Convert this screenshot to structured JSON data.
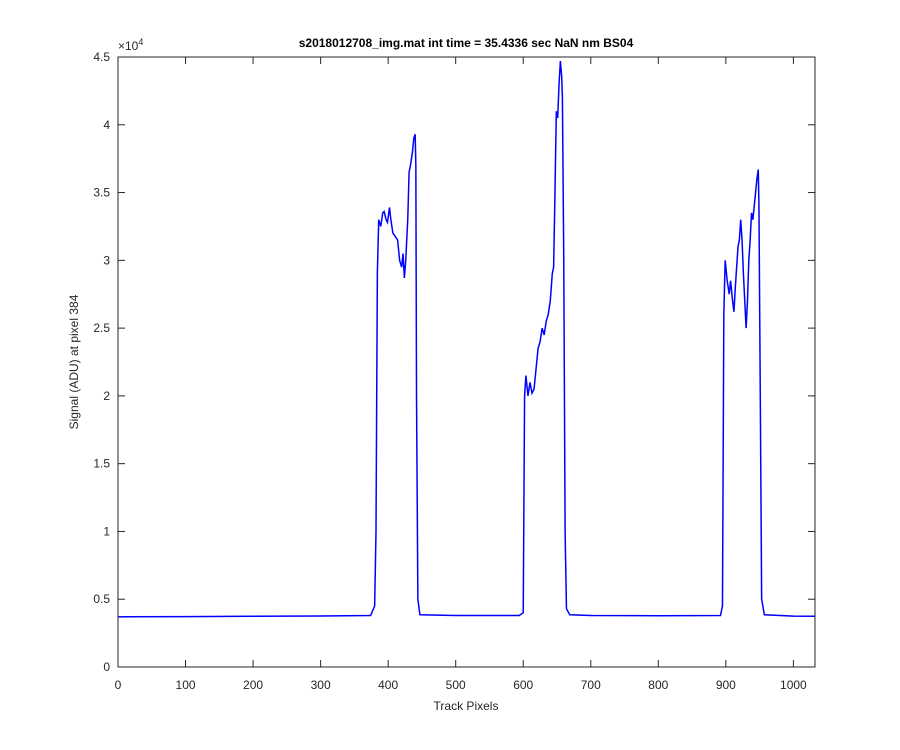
{
  "chart_data": {
    "type": "line",
    "title": "s2018012708_img.mat int time = 35.4336 sec  NaN nm BS04",
    "x_label": "Track Pixels",
    "y_label": "Signal (ADU) at pixel 384",
    "y_multiplier": {
      "base": "×10",
      "exponent": "4"
    },
    "xlim": [
      0,
      1032
    ],
    "xticks": [
      0,
      100,
      200,
      300,
      400,
      500,
      600,
      700,
      800,
      900,
      1000
    ],
    "ylim": [
      0,
      45000
    ],
    "yticks": [
      0,
      {
        "value": 5000,
        "label": "0.5"
      },
      {
        "value": 10000,
        "label": "1"
      },
      {
        "value": 15000,
        "label": "1.5"
      },
      {
        "value": 20000,
        "label": "2"
      },
      {
        "value": 25000,
        "label": "2.5"
      },
      {
        "value": 30000,
        "label": "3"
      },
      {
        "value": 35000,
        "label": "3.5"
      },
      {
        "value": 40000,
        "label": "4"
      },
      {
        "value": 45000,
        "label": "4.5"
      }
    ],
    "grid": false,
    "series": [
      {
        "color": "#0000ff",
        "x": [
          0,
          100,
          200,
          300,
          374,
          380,
          382,
          384,
          386,
          389,
          392,
          394,
          397,
          399,
          402,
          404,
          407,
          410,
          414,
          417,
          420,
          422,
          424,
          426,
          429,
          431,
          433,
          436,
          438,
          440,
          441,
          442,
          444,
          447,
          500,
          594,
          600,
          602,
          604,
          607,
          610,
          613,
          616,
          619,
          622,
          625,
          628,
          631,
          634,
          637,
          640,
          643,
          645,
          647,
          649,
          651,
          653,
          655,
          657,
          658,
          660,
          662,
          664,
          669,
          700,
          800,
          892,
          895,
          897,
          899,
          902,
          905,
          907,
          910,
          912,
          914,
          916,
          918,
          920,
          922,
          924,
          926,
          928,
          930,
          932,
          934,
          936,
          938,
          940,
          942,
          944,
          946,
          948,
          949,
          951,
          953,
          957,
          1000,
          1032
        ],
        "values": [
          3700,
          3720,
          3740,
          3760,
          3800,
          4500,
          10000,
          29000,
          33000,
          32500,
          33500,
          33600,
          33000,
          32800,
          33900,
          33000,
          32000,
          31800,
          31500,
          30000,
          29500,
          30500,
          28700,
          30000,
          33000,
          36500,
          37000,
          38000,
          39000,
          39300,
          37000,
          20000,
          5000,
          3850,
          3800,
          3800,
          4000,
          20000,
          21500,
          20000,
          21000,
          20200,
          20500,
          22000,
          23500,
          24000,
          25000,
          24500,
          25500,
          26000,
          27000,
          29000,
          29500,
          35000,
          41000,
          40500,
          43000,
          44700,
          43500,
          42000,
          30000,
          10000,
          4300,
          3850,
          3800,
          3780,
          3800,
          4500,
          26000,
          30000,
          28500,
          27500,
          28500,
          27000,
          26200,
          28000,
          29500,
          31000,
          31500,
          33000,
          31500,
          29000,
          27000,
          25000,
          27000,
          30000,
          31500,
          33500,
          33000,
          34000,
          35000,
          36000,
          36700,
          34000,
          20000,
          5000,
          3850,
          3750,
          3740
        ]
      }
    ]
  }
}
